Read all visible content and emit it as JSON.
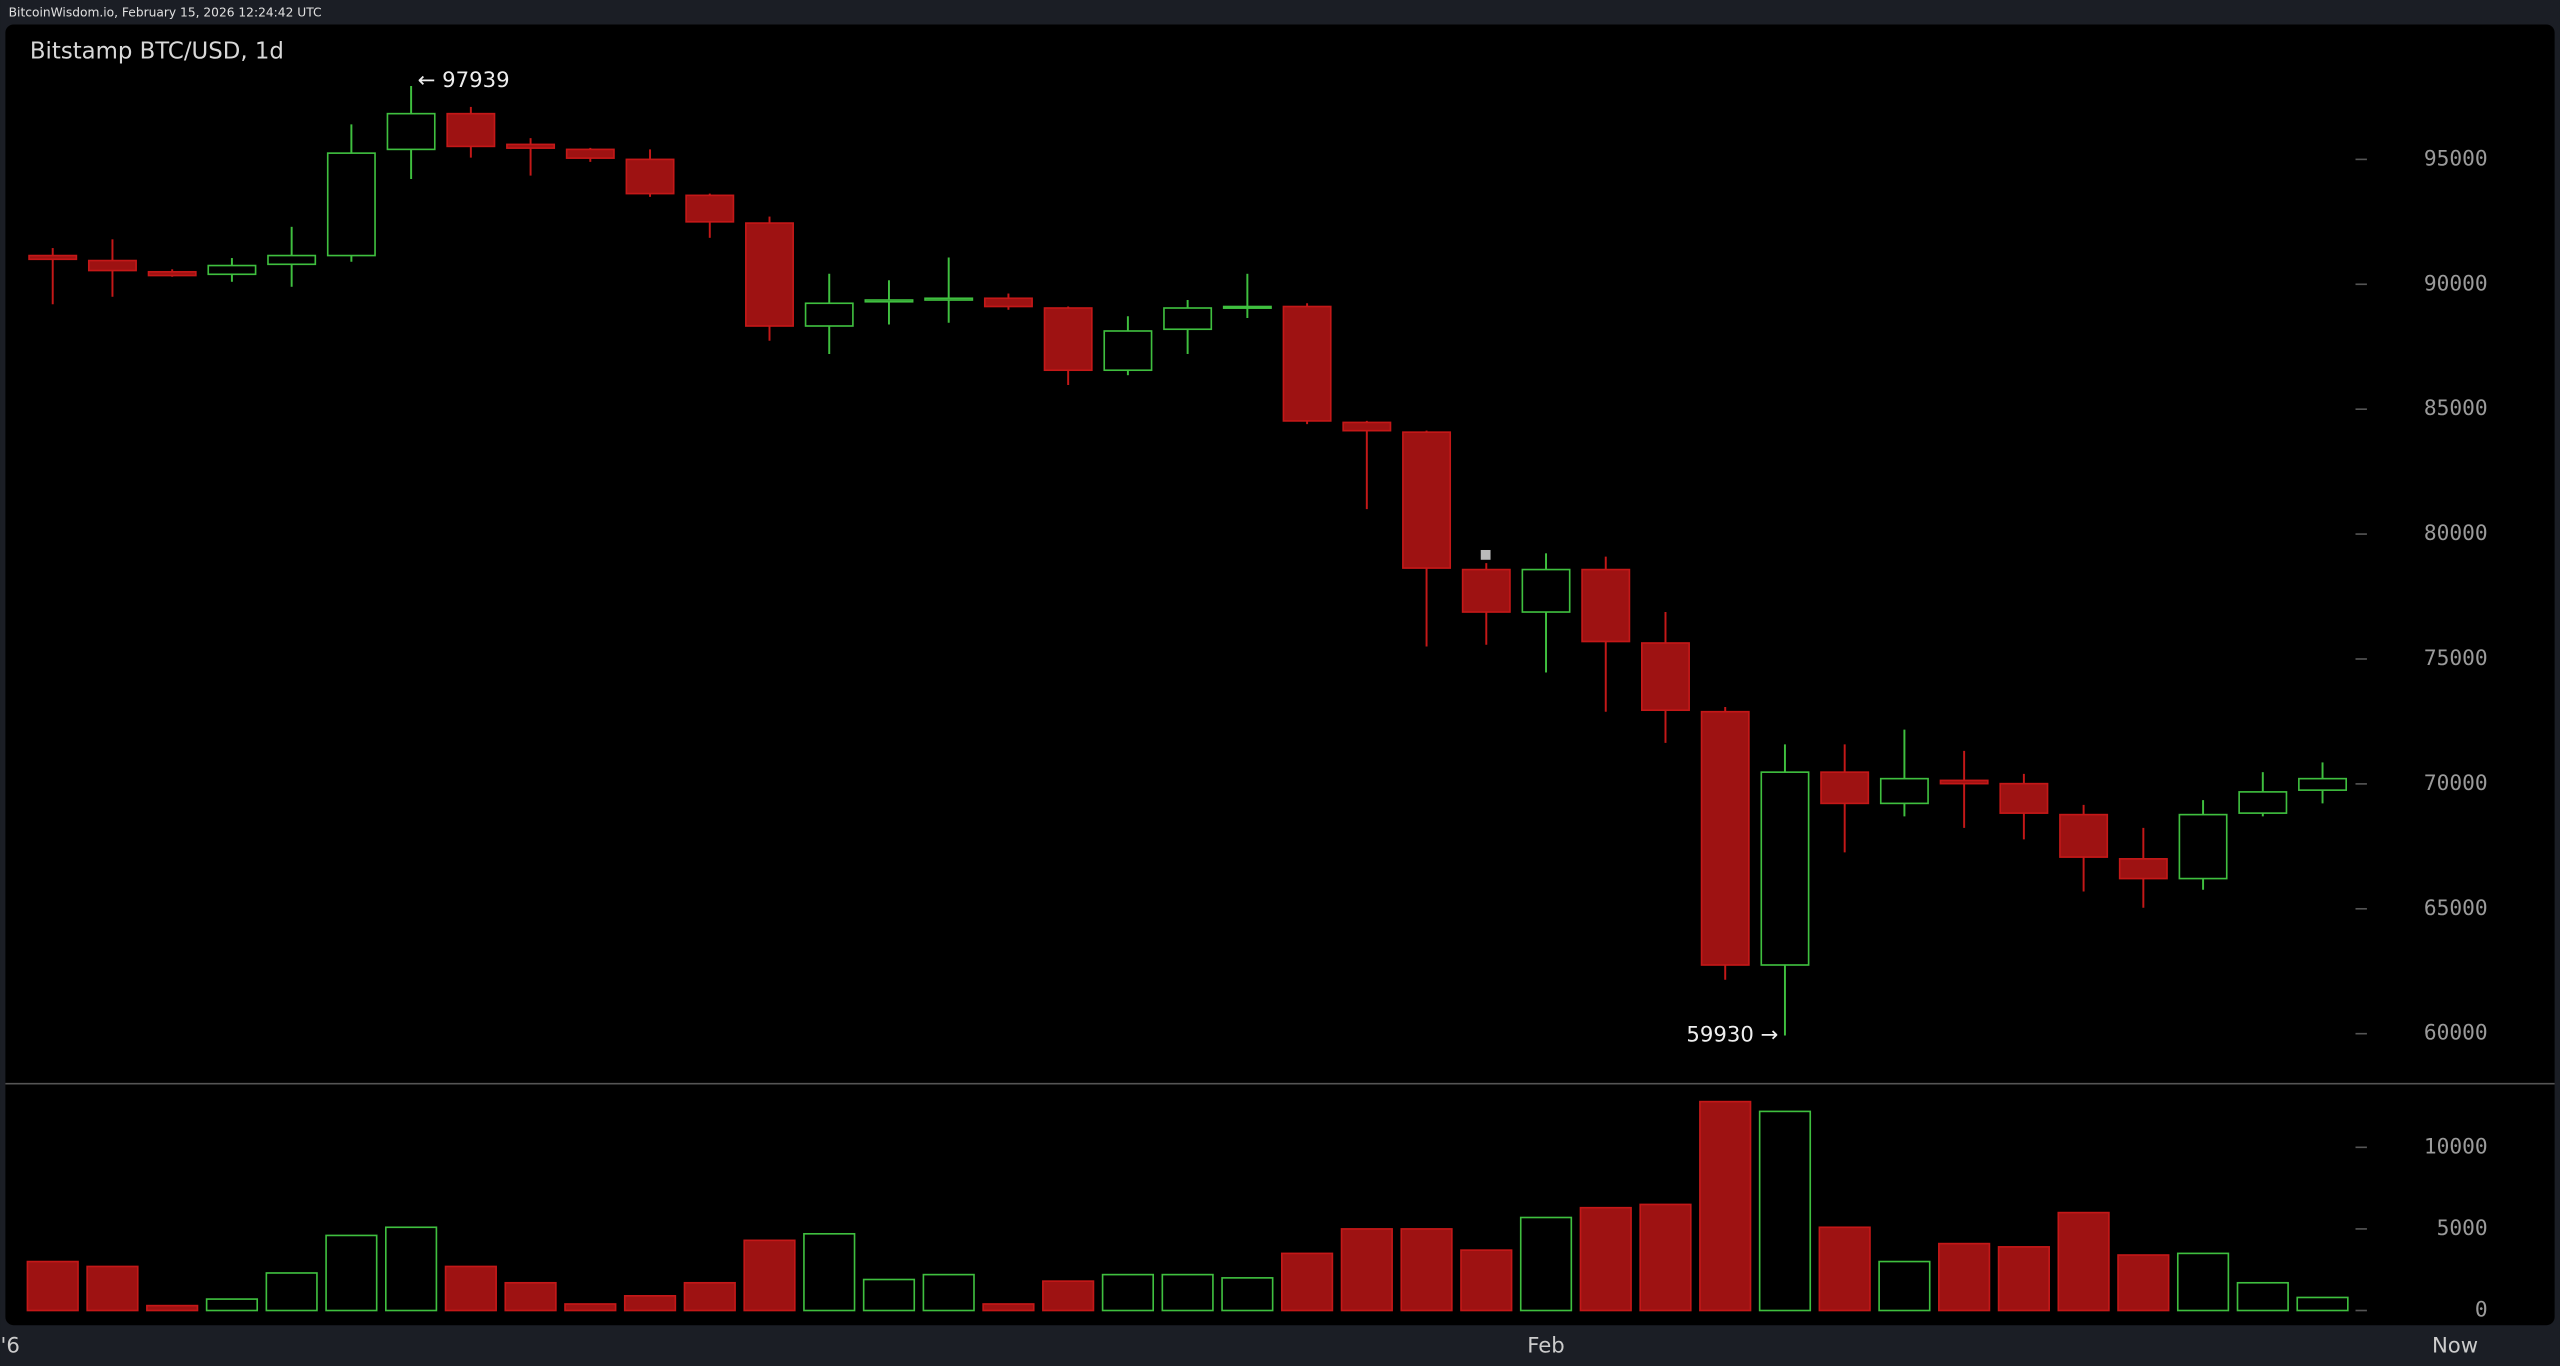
{
  "header": "BitcoinWisdom.io, February 15, 2026 12:24:42 UTC",
  "chart_data": {
    "type": "candlestick",
    "title": "Bitstamp BTC/USD, 1d",
    "categories": [
      null,
      null,
      null,
      null,
      null,
      null,
      null,
      null,
      null,
      null,
      null,
      null,
      null,
      null,
      null,
      null,
      null,
      null,
      null,
      null,
      null,
      null,
      null,
      null,
      null,
      "Feb",
      null,
      null,
      null,
      null,
      null,
      null,
      null,
      null,
      null,
      null,
      null,
      null,
      null
    ],
    "edge_labels": {
      "left": "'6",
      "right": "Now"
    },
    "open": [
      91150,
      90950,
      90500,
      90400,
      90800,
      91150,
      95400,
      96830,
      95600,
      95400,
      95000,
      93560,
      92450,
      88330,
      89300,
      89370,
      89440,
      89050,
      86560,
      88200,
      89050,
      89110,
      84470,
      84080,
      78580,
      76880,
      78580,
      75640,
      72890,
      62750,
      70470,
      69220,
      70140,
      70010,
      68770,
      67000,
      66210,
      68830,
      69750
    ],
    "high": [
      91450,
      91800,
      90600,
      91050,
      92300,
      96400,
      97939,
      97100,
      95850,
      95460,
      95400,
      93630,
      92710,
      90420,
      90160,
      91070,
      89630,
      89110,
      88720,
      89370,
      90420,
      89240,
      84530,
      84140,
      78840,
      79230,
      79100,
      76880,
      73080,
      71580,
      71580,
      72170,
      71320,
      70400,
      69160,
      68240,
      69350,
      70470,
      70860
    ],
    "low": [
      89200,
      89500,
      90300,
      90100,
      89900,
      90900,
      94214,
      95070,
      94350,
      94900,
      93500,
      91860,
      87740,
      87210,
      88390,
      88460,
      88980,
      85970,
      86360,
      87210,
      88650,
      84400,
      81000,
      75500,
      75570,
      74460,
      72890,
      71640,
      62160,
      59930,
      67260,
      68700,
      68240,
      67780,
      65690,
      65040,
      65760,
      68700,
      69220
    ],
    "close": [
      91000,
      90550,
      90350,
      90750,
      91150,
      95250,
      96830,
      95520,
      95450,
      95050,
      93630,
      92500,
      88330,
      89240,
      89370,
      89440,
      89110,
      86560,
      88130,
      89050,
      89110,
      84530,
      84140,
      78640,
      76880,
      78580,
      75700,
      72950,
      62750,
      70470,
      69220,
      70210,
      70010,
      68830,
      67070,
      66210,
      68770,
      69680,
      70210
    ],
    "volume": [
      3000,
      2700,
      300,
      700,
      2300,
      4600,
      5100,
      2700,
      1700,
      400,
      900,
      1700,
      4300,
      4700,
      1900,
      2200,
      400,
      1800,
      2200,
      2200,
      2000,
      3500,
      5000,
      5000,
      3700,
      5700,
      6300,
      6500,
      12800,
      12200,
      5100,
      3000,
      4100,
      3900,
      6000,
      3400,
      3500,
      1700,
      800
    ],
    "up_color": "#3fbf3f",
    "down_color": "#9e1212",
    "ylim": [
      58000,
      100400
    ],
    "yticks": [
      60000,
      65000,
      70000,
      75000,
      80000,
      85000,
      90000,
      95000
    ],
    "volume_ylim": [
      0,
      14000
    ],
    "volume_yticks": [
      0,
      5000,
      10000
    ],
    "annotations": [
      {
        "value": 97939,
        "label": "← 97939"
      },
      {
        "value": 59930,
        "label": "59930 →"
      }
    ]
  }
}
